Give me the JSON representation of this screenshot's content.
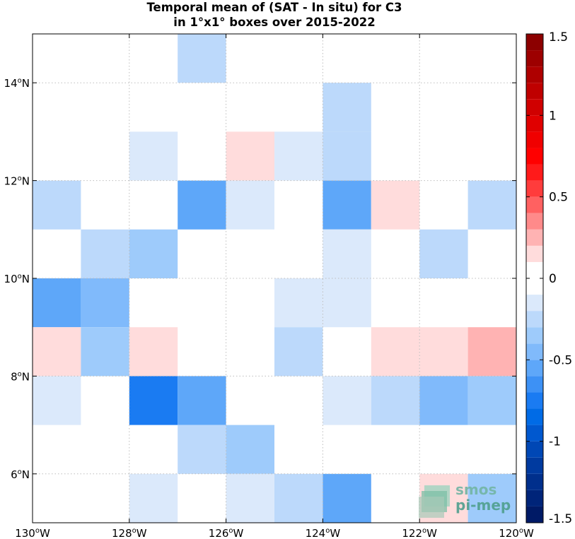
{
  "title_line1": "Temporal mean of (SAT - In situ) for C3",
  "title_line2": "in 1°x1° boxes over 2015-2022",
  "watermark": {
    "line1": "smos",
    "line2": "pi-mep",
    "icon": "layered-globe-icon"
  },
  "chart_data": {
    "type": "heatmap",
    "x_range_deg": [
      -130,
      -120
    ],
    "y_range_deg": [
      5,
      15
    ],
    "x_ticks": [
      {
        "value": -130,
        "label": "130°W"
      },
      {
        "value": -128,
        "label": "128°W"
      },
      {
        "value": -126,
        "label": "126°W"
      },
      {
        "value": -124,
        "label": "124°W"
      },
      {
        "value": -122,
        "label": "122°W"
      },
      {
        "value": -120,
        "label": "120°W"
      }
    ],
    "y_ticks": [
      {
        "value": 6,
        "label": "6°N"
      },
      {
        "value": 8,
        "label": "8°N"
      },
      {
        "value": 10,
        "label": "10°N"
      },
      {
        "value": 12,
        "label": "12°N"
      },
      {
        "value": 14,
        "label": "14°N"
      }
    ],
    "grid": true,
    "grid_style": "dotted",
    "colorbar": {
      "range": [
        -1.5,
        1.5
      ],
      "step": 0.1,
      "placement": "right",
      "ticks": [
        {
          "value": 1.5,
          "label": "1.5"
        },
        {
          "value": 1.0,
          "label": "1"
        },
        {
          "value": 0.5,
          "label": "0.5"
        },
        {
          "value": 0.0,
          "label": "0"
        },
        {
          "value": -0.5,
          "label": "-0.5"
        },
        {
          "value": -1.0,
          "label": "-1"
        },
        {
          "value": -1.5,
          "label": "-1.5"
        }
      ]
    },
    "cells": [
      {
        "lon": -127,
        "lat": 14,
        "value": -0.25
      },
      {
        "lon": -124,
        "lat": 13,
        "value": -0.25
      },
      {
        "lon": -128,
        "lat": 12,
        "value": -0.15
      },
      {
        "lon": -126,
        "lat": 12,
        "value": 0.15
      },
      {
        "lon": -125,
        "lat": 12,
        "value": -0.15
      },
      {
        "lon": -124,
        "lat": 12,
        "value": -0.25
      },
      {
        "lon": -130,
        "lat": 11,
        "value": -0.25
      },
      {
        "lon": -127,
        "lat": 11,
        "value": -0.55
      },
      {
        "lon": -126,
        "lat": 11,
        "value": -0.15
      },
      {
        "lon": -124,
        "lat": 11,
        "value": -0.55
      },
      {
        "lon": -123,
        "lat": 11,
        "value": 0.15
      },
      {
        "lon": -121,
        "lat": 11,
        "value": -0.25
      },
      {
        "lon": -129,
        "lat": 10,
        "value": -0.25
      },
      {
        "lon": -128,
        "lat": 10,
        "value": -0.35
      },
      {
        "lon": -124,
        "lat": 10,
        "value": -0.15
      },
      {
        "lon": -122,
        "lat": 10,
        "value": -0.25
      },
      {
        "lon": -130,
        "lat": 9,
        "value": -0.55
      },
      {
        "lon": -129,
        "lat": 9,
        "value": -0.45
      },
      {
        "lon": -125,
        "lat": 9,
        "value": -0.15
      },
      {
        "lon": -124,
        "lat": 9,
        "value": -0.15
      },
      {
        "lon": -130,
        "lat": 8,
        "value": 0.15
      },
      {
        "lon": -129,
        "lat": 8,
        "value": -0.35
      },
      {
        "lon": -128,
        "lat": 8,
        "value": 0.15
      },
      {
        "lon": -125,
        "lat": 8,
        "value": -0.25
      },
      {
        "lon": -123,
        "lat": 8,
        "value": 0.15
      },
      {
        "lon": -122,
        "lat": 8,
        "value": 0.15
      },
      {
        "lon": -121,
        "lat": 8,
        "value": 0.25
      },
      {
        "lon": -130,
        "lat": 7,
        "value": -0.15
      },
      {
        "lon": -128,
        "lat": 7,
        "value": -0.75
      },
      {
        "lon": -127,
        "lat": 7,
        "value": -0.55
      },
      {
        "lon": -124,
        "lat": 7,
        "value": -0.15
      },
      {
        "lon": -123,
        "lat": 7,
        "value": -0.25
      },
      {
        "lon": -122,
        "lat": 7,
        "value": -0.45
      },
      {
        "lon": -121,
        "lat": 7,
        "value": -0.35
      },
      {
        "lon": -127,
        "lat": 6,
        "value": -0.25
      },
      {
        "lon": -126,
        "lat": 6,
        "value": -0.35
      },
      {
        "lon": -128,
        "lat": 5,
        "value": -0.15
      },
      {
        "lon": -126,
        "lat": 5,
        "value": -0.15
      },
      {
        "lon": -125,
        "lat": 5,
        "value": -0.25
      },
      {
        "lon": -124,
        "lat": 5,
        "value": -0.55
      },
      {
        "lon": -122,
        "lat": 5,
        "value": 0.15
      },
      {
        "lon": -121,
        "lat": 5,
        "value": -0.35
      }
    ]
  }
}
